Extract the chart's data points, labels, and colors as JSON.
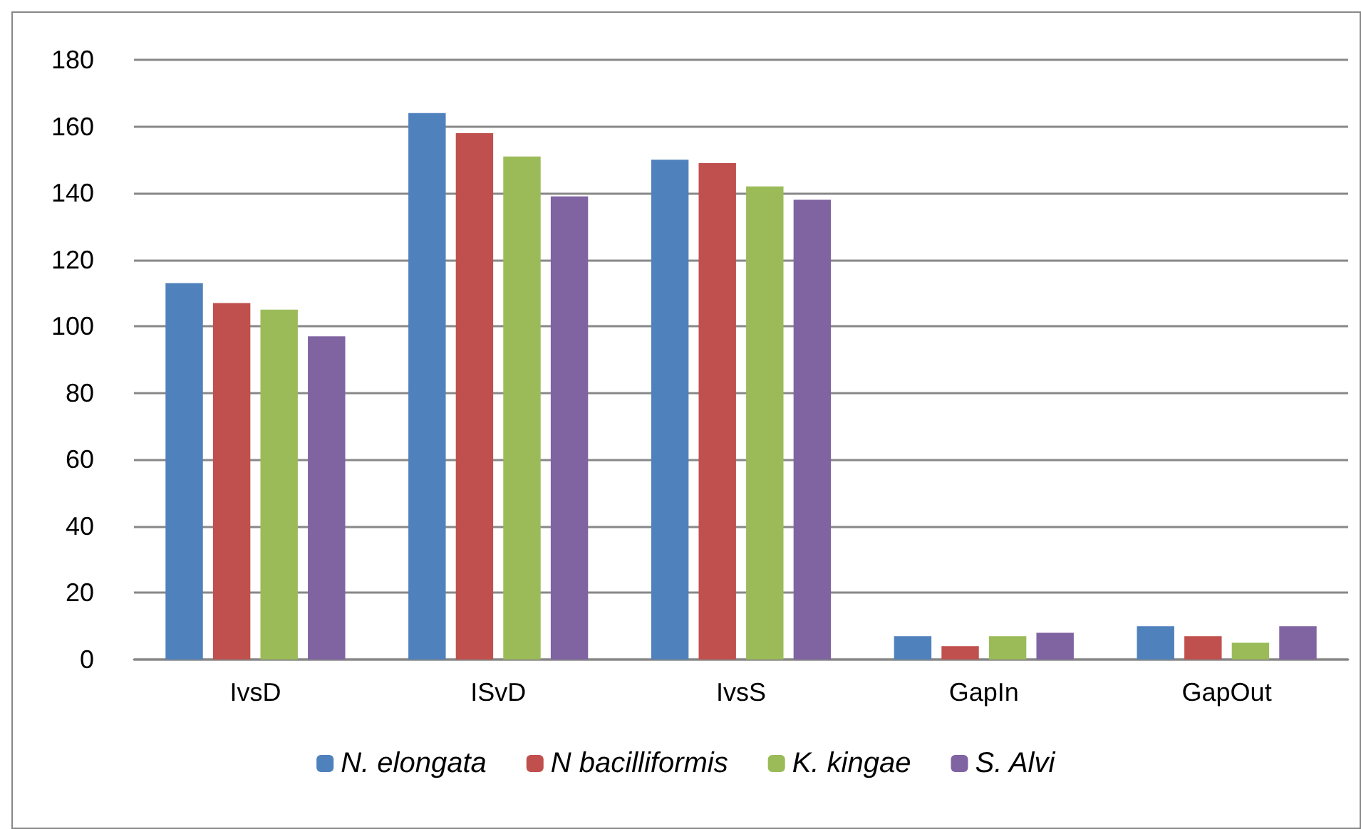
{
  "chart_data": {
    "type": "bar",
    "categories": [
      "IvsD",
      "ISvD",
      "IvsS",
      "GapIn",
      "GapOut"
    ],
    "series": [
      {
        "name": "N. elongata",
        "color": "#4f81bd",
        "values": [
          113,
          164,
          150,
          7,
          10
        ]
      },
      {
        "name": "N bacilliformis",
        "color": "#c0504d",
        "values": [
          107,
          158,
          149,
          4,
          7
        ]
      },
      {
        "name": "K. kingae",
        "color": "#9bbb59",
        "values": [
          105,
          151,
          142,
          7,
          5
        ]
      },
      {
        "name": "S. Alvi",
        "color": "#8064a2",
        "values": [
          97,
          139,
          138,
          8,
          10
        ]
      }
    ],
    "ylim": [
      0,
      180
    ],
    "yticks": [
      0,
      20,
      40,
      60,
      80,
      100,
      120,
      140,
      160,
      180
    ],
    "grid": "y",
    "legend": "bottom"
  }
}
